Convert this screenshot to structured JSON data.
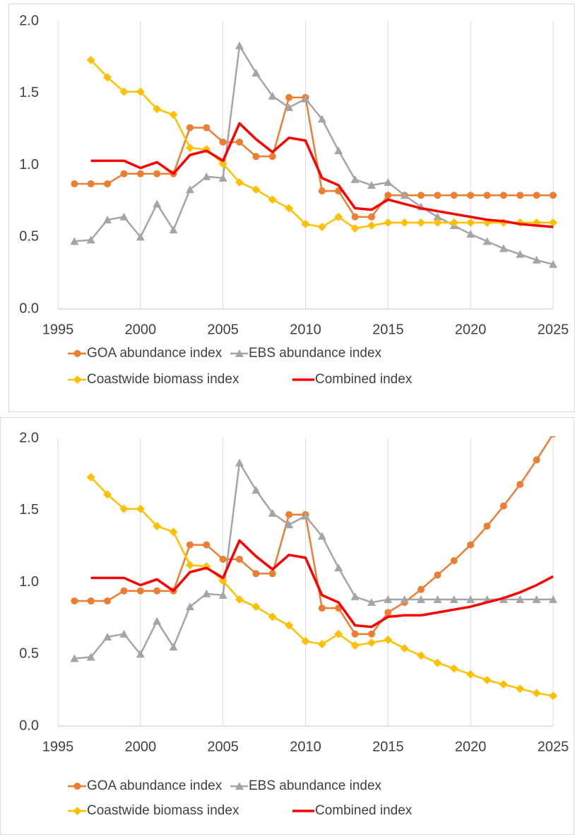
{
  "chart_data": [
    {
      "type": "line",
      "x": [
        1996,
        1997,
        1998,
        1999,
        2000,
        2001,
        2002,
        2003,
        2004,
        2005,
        2006,
        2007,
        2008,
        2009,
        2010,
        2011,
        2012,
        2013,
        2014,
        2015,
        2016,
        2017,
        2018,
        2019,
        2020,
        2021,
        2022,
        2023,
        2024,
        2025
      ],
      "xlim": [
        1995,
        2025
      ],
      "xticks": [
        1995,
        2000,
        2005,
        2010,
        2015,
        2020,
        2025
      ],
      "ylim": [
        0,
        2
      ],
      "yticks": [
        {
          "value": 0,
          "label": "0.0"
        },
        {
          "value": 0.5,
          "label": "0.5"
        },
        {
          "value": 1,
          "label": "1.0"
        },
        {
          "value": 1.5,
          "label": "1.5"
        },
        {
          "value": 2,
          "label": "2.0"
        }
      ],
      "grid": "x",
      "legend": "bottom",
      "series": [
        {
          "name": "GOA abundance index",
          "color": "#ED7D31",
          "marker": "circle",
          "values": [
            0.87,
            0.87,
            0.87,
            0.94,
            0.94,
            0.94,
            0.94,
            1.26,
            1.26,
            1.16,
            1.16,
            1.06,
            1.06,
            1.47,
            1.47,
            0.82,
            0.82,
            0.64,
            0.64,
            0.79,
            0.79,
            0.79,
            0.79,
            0.79,
            0.79,
            0.79,
            0.79,
            0.79,
            0.79,
            0.79
          ]
        },
        {
          "name": "EBS abundance index",
          "color": "#A5A5A5",
          "marker": "triangle",
          "values": [
            0.47,
            0.48,
            0.62,
            0.64,
            0.5,
            0.73,
            0.55,
            0.83,
            0.92,
            0.91,
            1.83,
            1.64,
            1.48,
            1.4,
            1.46,
            1.32,
            1.1,
            0.9,
            0.86,
            0.88,
            0.79,
            0.71,
            0.64,
            0.58,
            0.52,
            0.47,
            0.42,
            0.38,
            0.34,
            0.31
          ]
        },
        {
          "name": "Coastwide biomass index",
          "color": "#FFC000",
          "marker": "diamond",
          "values": [
            null,
            1.73,
            1.61,
            1.51,
            1.51,
            1.39,
            1.35,
            1.12,
            1.11,
            1.01,
            0.88,
            0.83,
            0.76,
            0.7,
            0.59,
            0.57,
            0.64,
            0.56,
            0.58,
            0.6,
            0.6,
            0.6,
            0.6,
            0.6,
            0.6,
            0.6,
            0.6,
            0.6,
            0.6,
            0.6
          ]
        },
        {
          "name": "Combined index",
          "color": "#FF0000",
          "marker": "none",
          "values": [
            null,
            1.03,
            1.03,
            1.03,
            0.98,
            1.02,
            0.94,
            1.07,
            1.1,
            1.03,
            1.29,
            1.18,
            1.09,
            1.19,
            1.17,
            0.91,
            0.86,
            0.7,
            0.69,
            0.76,
            0.73,
            0.7,
            0.68,
            0.66,
            0.64,
            0.62,
            0.61,
            0.59,
            0.58,
            0.57
          ]
        }
      ]
    },
    {
      "type": "line",
      "x": [
        1996,
        1997,
        1998,
        1999,
        2000,
        2001,
        2002,
        2003,
        2004,
        2005,
        2006,
        2007,
        2008,
        2009,
        2010,
        2011,
        2012,
        2013,
        2014,
        2015,
        2016,
        2017,
        2018,
        2019,
        2020,
        2021,
        2022,
        2023,
        2024,
        2025
      ],
      "xlim": [
        1995,
        2025
      ],
      "xticks": [
        1995,
        2000,
        2005,
        2010,
        2015,
        2020,
        2025
      ],
      "ylim": [
        0,
        2
      ],
      "yticks": [
        {
          "value": 0,
          "label": "0.0"
        },
        {
          "value": 0.5,
          "label": "0.5"
        },
        {
          "value": 1,
          "label": "1.0"
        },
        {
          "value": 1.5,
          "label": "1.5"
        },
        {
          "value": 2,
          "label": "2.0"
        }
      ],
      "grid": "x",
      "legend": "bottom",
      "series": [
        {
          "name": "GOA abundance index",
          "color": "#ED7D31",
          "marker": "circle",
          "values": [
            0.87,
            0.87,
            0.87,
            0.94,
            0.94,
            0.94,
            0.94,
            1.26,
            1.26,
            1.16,
            1.16,
            1.06,
            1.06,
            1.47,
            1.47,
            0.82,
            0.82,
            0.64,
            0.64,
            0.79,
            0.86,
            0.95,
            1.05,
            1.15,
            1.26,
            1.39,
            1.53,
            1.68,
            1.85,
            2.03
          ]
        },
        {
          "name": "EBS abundance index",
          "color": "#A5A5A5",
          "marker": "triangle",
          "values": [
            0.47,
            0.48,
            0.62,
            0.64,
            0.5,
            0.73,
            0.55,
            0.83,
            0.92,
            0.91,
            1.83,
            1.64,
            1.48,
            1.4,
            1.46,
            1.32,
            1.1,
            0.9,
            0.86,
            0.88,
            0.88,
            0.88,
            0.88,
            0.88,
            0.88,
            0.88,
            0.88,
            0.88,
            0.88,
            0.88
          ]
        },
        {
          "name": "Coastwide biomass index",
          "color": "#FFC000",
          "marker": "diamond",
          "values": [
            null,
            1.73,
            1.61,
            1.51,
            1.51,
            1.39,
            1.35,
            1.12,
            1.11,
            1.01,
            0.88,
            0.83,
            0.76,
            0.7,
            0.59,
            0.57,
            0.64,
            0.56,
            0.58,
            0.6,
            0.54,
            0.49,
            0.44,
            0.4,
            0.36,
            0.32,
            0.29,
            0.26,
            0.23,
            0.21
          ]
        },
        {
          "name": "Combined index",
          "color": "#FF0000",
          "marker": "none",
          "values": [
            null,
            1.03,
            1.03,
            1.03,
            0.98,
            1.02,
            0.94,
            1.07,
            1.1,
            1.03,
            1.29,
            1.18,
            1.09,
            1.19,
            1.17,
            0.91,
            0.86,
            0.7,
            0.69,
            0.76,
            0.77,
            0.77,
            0.79,
            0.81,
            0.83,
            0.86,
            0.89,
            0.93,
            0.98,
            1.04
          ]
        }
      ]
    }
  ]
}
